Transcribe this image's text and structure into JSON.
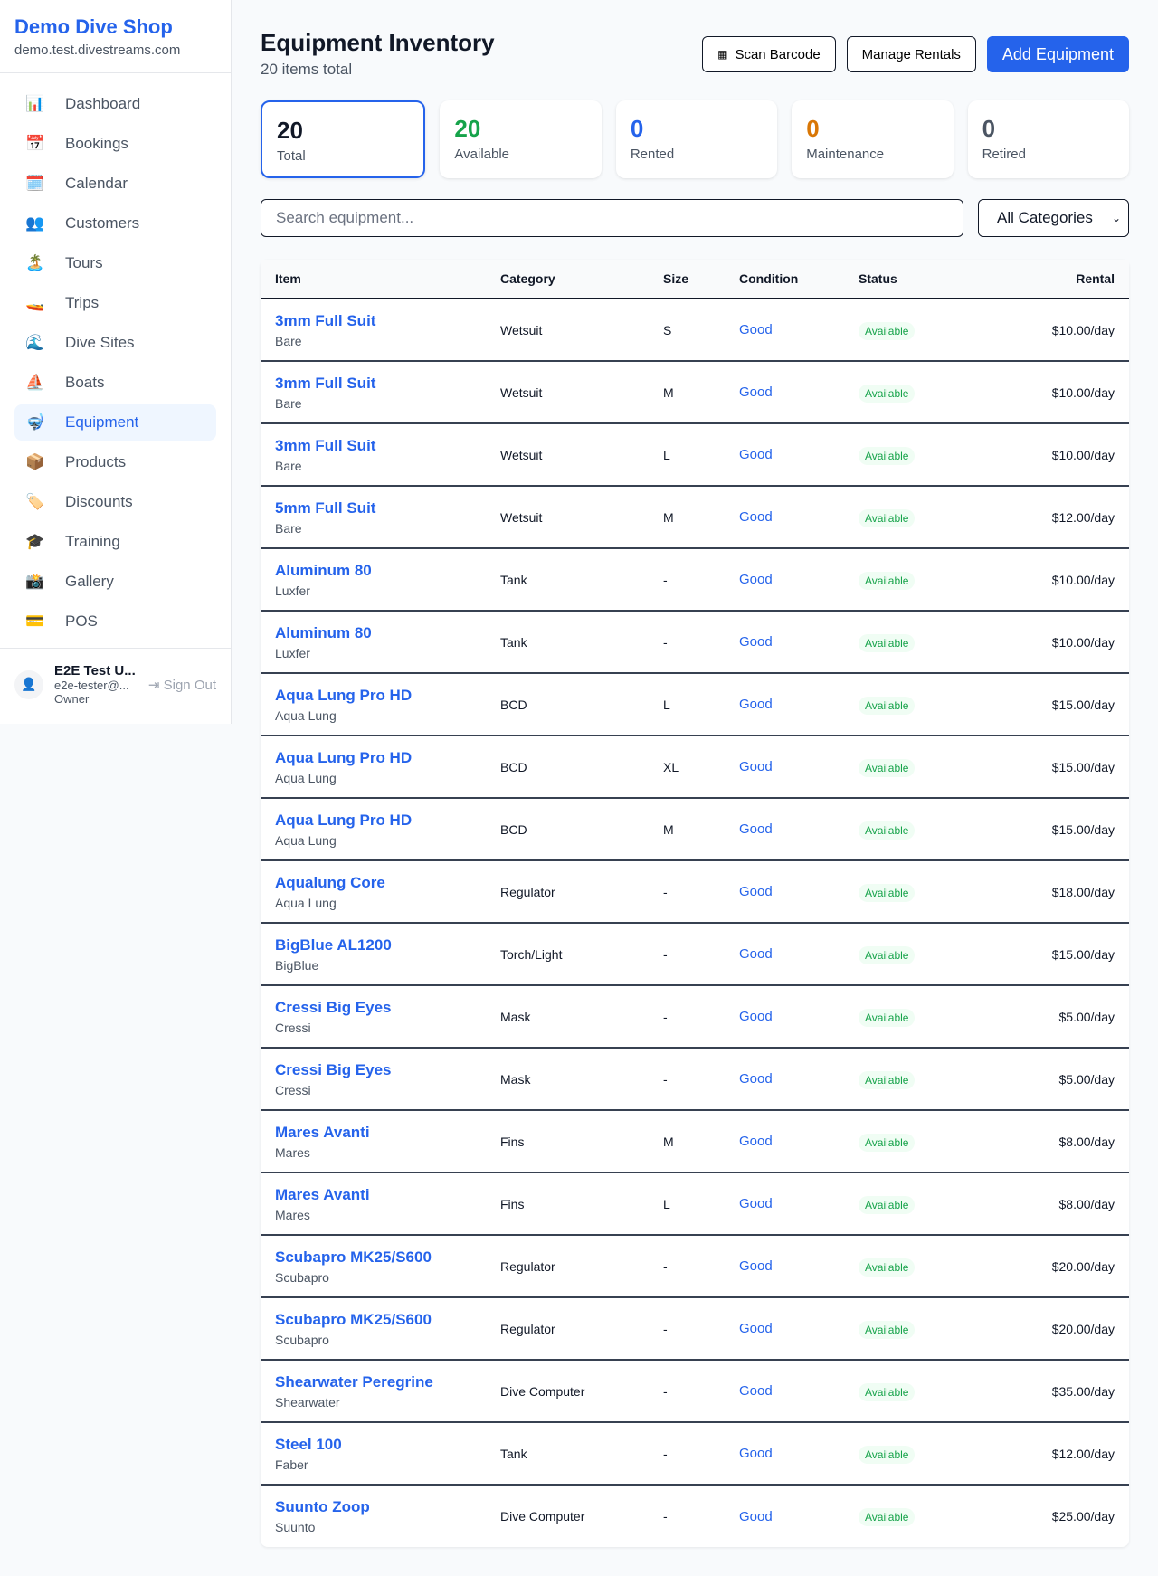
{
  "sidebar": {
    "brand": "Demo Dive Shop",
    "url": "demo.test.divestreams.com",
    "items": [
      {
        "icon": "📊",
        "label": "Dashboard"
      },
      {
        "icon": "📅",
        "label": "Bookings"
      },
      {
        "icon": "🗓️",
        "label": "Calendar"
      },
      {
        "icon": "👥",
        "label": "Customers"
      },
      {
        "icon": "🏝️",
        "label": "Tours"
      },
      {
        "icon": "🚤",
        "label": "Trips"
      },
      {
        "icon": "🌊",
        "label": "Dive Sites"
      },
      {
        "icon": "⛵",
        "label": "Boats"
      },
      {
        "icon": "🤿",
        "label": "Equipment",
        "active": true
      },
      {
        "icon": "📦",
        "label": "Products"
      },
      {
        "icon": "🏷️",
        "label": "Discounts"
      },
      {
        "icon": "🎓",
        "label": "Training"
      },
      {
        "icon": "📸",
        "label": "Gallery"
      },
      {
        "icon": "💳",
        "label": "POS"
      }
    ],
    "user": {
      "name": "E2E Test U...",
      "email": "e2e-tester@...",
      "role": "Owner",
      "sign_out": "Sign Out"
    }
  },
  "header": {
    "title": "Equipment Inventory",
    "subtitle": "20 items total",
    "scan": "Scan Barcode",
    "manage": "Manage Rentals",
    "add": "Add Equipment"
  },
  "stats": [
    {
      "value": "20",
      "label": "Total",
      "color": "#111827"
    },
    {
      "value": "20",
      "label": "Available",
      "color": "#16a34a"
    },
    {
      "value": "0",
      "label": "Rented",
      "color": "#2563eb"
    },
    {
      "value": "0",
      "label": "Maintenance",
      "color": "#d97706"
    },
    {
      "value": "0",
      "label": "Retired",
      "color": "#4b5563"
    }
  ],
  "filters": {
    "search_placeholder": "Search equipment...",
    "category": "All Categories"
  },
  "table": {
    "headers": [
      "Item",
      "Category",
      "Size",
      "Condition",
      "Status",
      "Rental"
    ],
    "rows": [
      [
        "3mm Full Suit",
        "Bare",
        "Wetsuit",
        "S",
        "Good",
        "Available",
        "$10.00/day"
      ],
      [
        "3mm Full Suit",
        "Bare",
        "Wetsuit",
        "M",
        "Good",
        "Available",
        "$10.00/day"
      ],
      [
        "3mm Full Suit",
        "Bare",
        "Wetsuit",
        "L",
        "Good",
        "Available",
        "$10.00/day"
      ],
      [
        "5mm Full Suit",
        "Bare",
        "Wetsuit",
        "M",
        "Good",
        "Available",
        "$12.00/day"
      ],
      [
        "Aluminum 80",
        "Luxfer",
        "Tank",
        "-",
        "Good",
        "Available",
        "$10.00/day"
      ],
      [
        "Aluminum 80",
        "Luxfer",
        "Tank",
        "-",
        "Good",
        "Available",
        "$10.00/day"
      ],
      [
        "Aqua Lung Pro HD",
        "Aqua Lung",
        "BCD",
        "L",
        "Good",
        "Available",
        "$15.00/day"
      ],
      [
        "Aqua Lung Pro HD",
        "Aqua Lung",
        "BCD",
        "XL",
        "Good",
        "Available",
        "$15.00/day"
      ],
      [
        "Aqua Lung Pro HD",
        "Aqua Lung",
        "BCD",
        "M",
        "Good",
        "Available",
        "$15.00/day"
      ],
      [
        "Aqualung Core",
        "Aqua Lung",
        "Regulator",
        "-",
        "Good",
        "Available",
        "$18.00/day"
      ],
      [
        "BigBlue AL1200",
        "BigBlue",
        "Torch/Light",
        "-",
        "Good",
        "Available",
        "$15.00/day"
      ],
      [
        "Cressi Big Eyes",
        "Cressi",
        "Mask",
        "-",
        "Good",
        "Available",
        "$5.00/day"
      ],
      [
        "Cressi Big Eyes",
        "Cressi",
        "Mask",
        "-",
        "Good",
        "Available",
        "$5.00/day"
      ],
      [
        "Mares Avanti",
        "Mares",
        "Fins",
        "M",
        "Good",
        "Available",
        "$8.00/day"
      ],
      [
        "Mares Avanti",
        "Mares",
        "Fins",
        "L",
        "Good",
        "Available",
        "$8.00/day"
      ],
      [
        "Scubapro MK25/S600",
        "Scubapro",
        "Regulator",
        "-",
        "Good",
        "Available",
        "$20.00/day"
      ],
      [
        "Scubapro MK25/S600",
        "Scubapro",
        "Regulator",
        "-",
        "Good",
        "Available",
        "$20.00/day"
      ],
      [
        "Shearwater Peregrine",
        "Shearwater",
        "Dive Computer",
        "-",
        "Good",
        "Available",
        "$35.00/day"
      ],
      [
        "Steel 100",
        "Faber",
        "Tank",
        "-",
        "Good",
        "Available",
        "$12.00/day"
      ],
      [
        "Suunto Zoop",
        "Suunto",
        "Dive Computer",
        "-",
        "Good",
        "Available",
        "$25.00/day"
      ]
    ]
  }
}
